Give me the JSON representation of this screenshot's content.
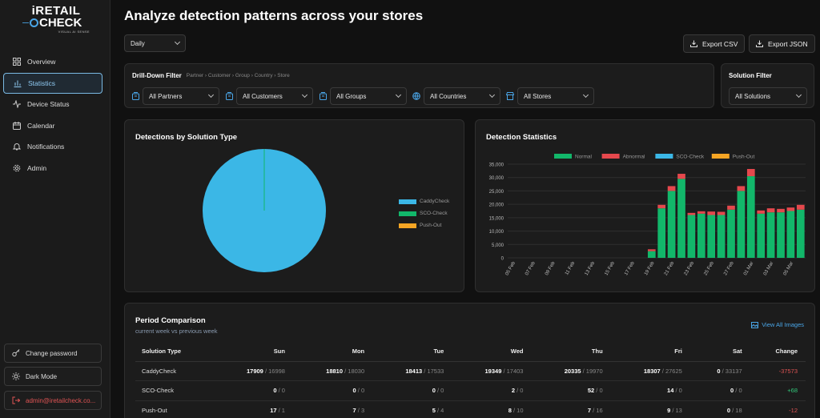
{
  "app": {
    "logo_line1": "iRETAIL",
    "logo_line2": "CHECK",
    "logo_tagline": "VISUAL AI SENSE"
  },
  "sidebar": {
    "items": [
      {
        "label": "Overview",
        "icon": "grid-icon"
      },
      {
        "label": "Statistics",
        "icon": "bar-chart-icon",
        "active": true
      },
      {
        "label": "Device Status",
        "icon": "activity-icon"
      },
      {
        "label": "Calendar",
        "icon": "calendar-icon"
      },
      {
        "label": "Notifications",
        "icon": "bell-icon"
      },
      {
        "label": "Admin",
        "icon": "gear-icon"
      }
    ],
    "change_password": "Change password",
    "dark_mode": "Dark Mode",
    "user_email": "admin@iretailcheck.co..."
  },
  "header": {
    "title": "Analyze detection patterns across your stores",
    "period_select": "Daily",
    "export_csv": "Export CSV",
    "export_json": "Export JSON"
  },
  "drilldown": {
    "title": "Drill-Down Filter",
    "breadcrumb": [
      "Partner",
      "Customer",
      "Group",
      "Country",
      "Store"
    ],
    "partners": "All Partners",
    "customers": "All Customers",
    "groups": "All Groups",
    "countries": "All Countries",
    "stores": "All Stores"
  },
  "solution_filter": {
    "title": "Solution Filter",
    "value": "All Solutions"
  },
  "pie": {
    "title": "Detections by Solution Type",
    "legend": [
      "CaddyCheck",
      "SCO-Check",
      "Push-Out"
    ],
    "colors": [
      "#3bb7e6",
      "#12b76a",
      "#f5a524"
    ]
  },
  "chart_data": {
    "type": "bar",
    "title": "Detection Statistics",
    "stacked": true,
    "legend_position": "top",
    "categories": [
      "05 Feb",
      "06 Feb",
      "07 Feb",
      "08 Feb",
      "09 Feb",
      "10 Feb",
      "11 Feb",
      "12 Feb",
      "13 Feb",
      "14 Feb",
      "15 Feb",
      "16 Feb",
      "17 Feb",
      "18 Feb",
      "19 Feb",
      "20 Feb",
      "21 Feb",
      "22 Feb",
      "23 Feb",
      "24 Feb",
      "25 Feb",
      "26 Feb",
      "27 Feb",
      "28 Feb",
      "01 Mar",
      "02 Mar",
      "03 Mar",
      "04 Mar",
      "05 Mar",
      "06 Mar"
    ],
    "x_tick_labels": [
      "05 Feb",
      "07 Feb",
      "09 Feb",
      "11 Feb",
      "13 Feb",
      "15 Feb",
      "17 Feb",
      "19 Feb",
      "21 Feb",
      "23 Feb",
      "25 Feb",
      "27 Feb",
      "01 Mar",
      "03 Mar",
      "05 Mar"
    ],
    "series": [
      {
        "name": "Normal",
        "color": "#12b76a",
        "values": [
          0,
          0,
          0,
          0,
          0,
          0,
          0,
          0,
          0,
          0,
          0,
          0,
          0,
          0,
          2500,
          18500,
          25000,
          29500,
          16000,
          16500,
          16000,
          16000,
          18000,
          25000,
          30500,
          16500,
          17000,
          17000,
          17500,
          18000
        ]
      },
      {
        "name": "Abnormal",
        "color": "#e5484d",
        "values": [
          0,
          0,
          0,
          0,
          0,
          0,
          0,
          0,
          0,
          0,
          0,
          0,
          0,
          0,
          700,
          1300,
          1800,
          1900,
          800,
          900,
          1300,
          1200,
          1500,
          1800,
          2700,
          1200,
          1500,
          1300,
          1300,
          1800
        ]
      },
      {
        "name": "SCO-Check",
        "color": "#3bb7e6",
        "values": [
          0,
          0,
          0,
          0,
          0,
          0,
          0,
          0,
          0,
          0,
          0,
          0,
          0,
          0,
          0,
          0,
          0,
          0,
          0,
          0,
          0,
          0,
          0,
          0,
          0,
          0,
          0,
          0,
          0,
          0
        ]
      },
      {
        "name": "Push-Out",
        "color": "#f5a524",
        "values": [
          0,
          0,
          0,
          0,
          0,
          0,
          0,
          0,
          0,
          0,
          0,
          0,
          0,
          0,
          0,
          0,
          0,
          0,
          0,
          0,
          0,
          0,
          0,
          0,
          0,
          0,
          0,
          0,
          0,
          0
        ]
      }
    ],
    "ylim": [
      0,
      35000
    ],
    "y_ticks": [
      "0",
      "5,000",
      "10,000",
      "15,000",
      "20,000",
      "25,000",
      "30,000",
      "35,000"
    ],
    "grid": true
  },
  "comparison": {
    "title": "Period Comparison",
    "subtitle": "current week vs previous week",
    "view_all": "View All Images",
    "columns": [
      "Solution Type",
      "Sun",
      "Mon",
      "Tue",
      "Wed",
      "Thu",
      "Fri",
      "Sat",
      "Change"
    ],
    "rows": [
      {
        "name": "CaddyCheck",
        "cells": [
          [
            "17909",
            "16998"
          ],
          [
            "18810",
            "18030"
          ],
          [
            "18413",
            "17533"
          ],
          [
            "19349",
            "17403"
          ],
          [
            "20335",
            "19970"
          ],
          [
            "18307",
            "27625"
          ],
          [
            "0",
            "33137"
          ]
        ],
        "change": "-37573",
        "change_type": "neg"
      },
      {
        "name": "SCO-Check",
        "cells": [
          [
            "0",
            "0"
          ],
          [
            "0",
            "0"
          ],
          [
            "0",
            "0"
          ],
          [
            "2",
            "0"
          ],
          [
            "52",
            "0"
          ],
          [
            "14",
            "0"
          ],
          [
            "0",
            "0"
          ]
        ],
        "change": "+68",
        "change_type": "pos"
      },
      {
        "name": "Push-Out",
        "cells": [
          [
            "17",
            "1"
          ],
          [
            "7",
            "3"
          ],
          [
            "5",
            "4"
          ],
          [
            "8",
            "10"
          ],
          [
            "7",
            "16"
          ],
          [
            "9",
            "13"
          ],
          [
            "0",
            "18"
          ]
        ],
        "change": "-12",
        "change_type": "neg"
      }
    ]
  }
}
